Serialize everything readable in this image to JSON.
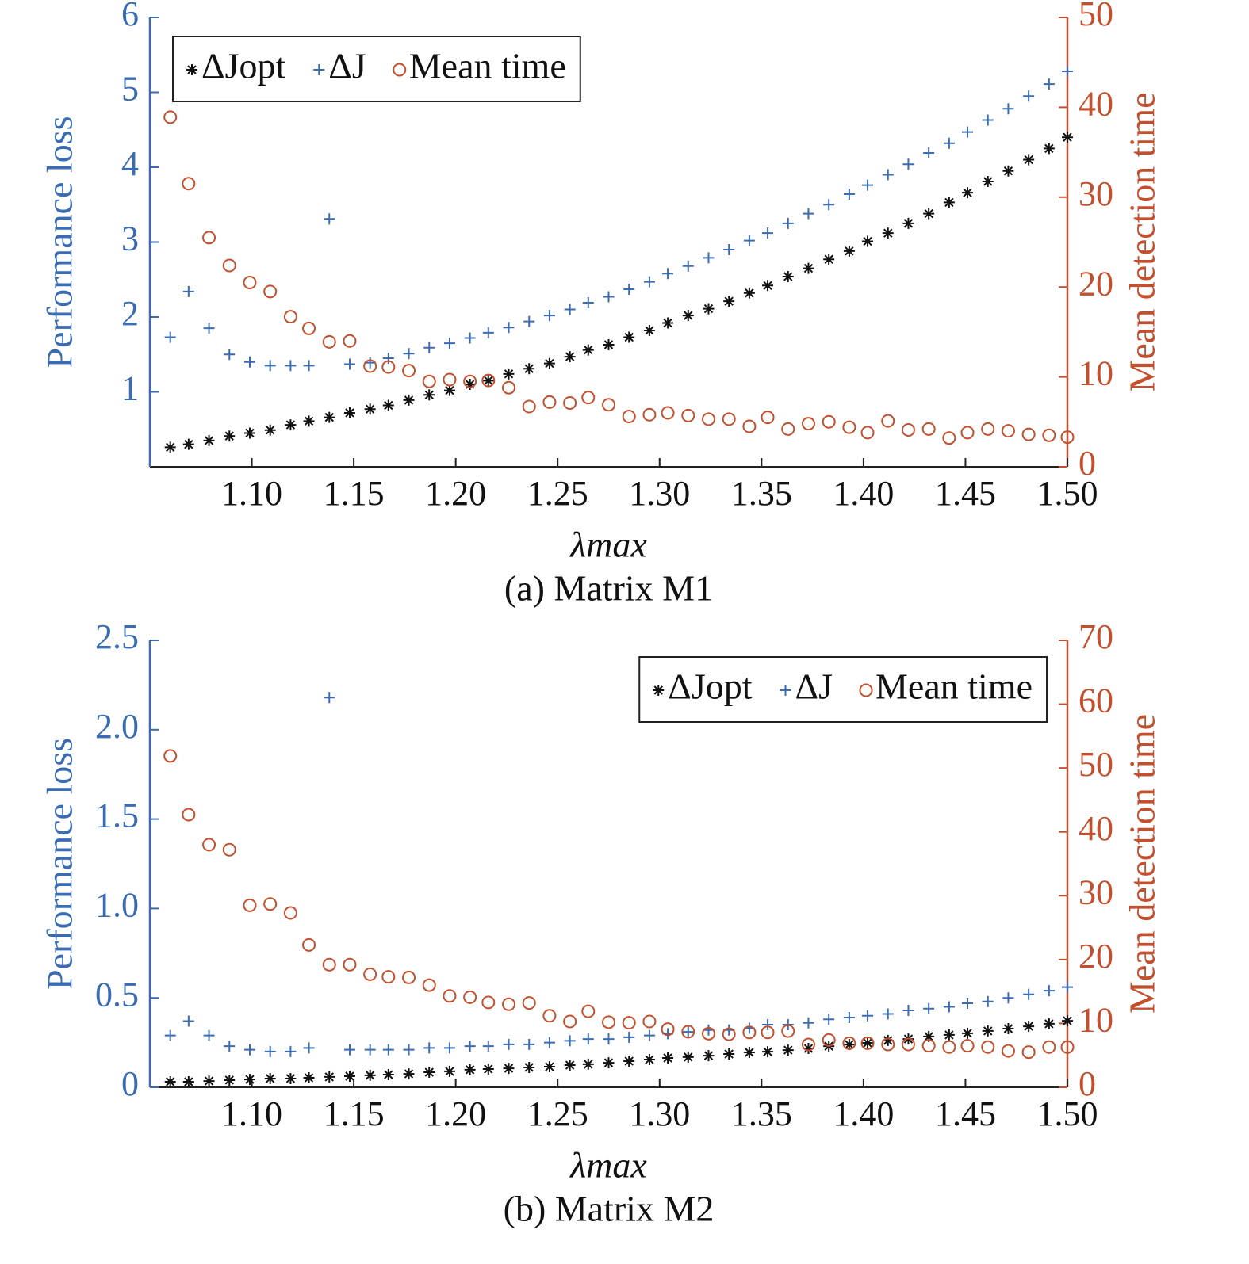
{
  "chart_data": [
    {
      "type": "scatter",
      "title": "(a) Matrix M1",
      "xlabel": "λmax",
      "ylabel": "Performance loss",
      "y2label": "Mean detection time",
      "legend": "upper left",
      "ycolor": "#3b6cb2",
      "y2color": "#c2502e",
      "xlim": [
        1.05,
        1.5
      ],
      "xticks": [
        {
          "value": 1.1,
          "label": "1.10"
        },
        1.15,
        {
          "value": 1.2,
          "label": "1.20"
        },
        1.25,
        {
          "value": 1.3,
          "label": "1.30"
        },
        1.35,
        {
          "value": 1.4,
          "label": "1.40"
        },
        1.45,
        {
          "value": 1.5,
          "label": "1.50"
        }
      ],
      "ylim": [
        0,
        6
      ],
      "yticks": [
        1,
        2,
        3,
        4,
        5,
        6
      ],
      "y2lim": [
        0,
        50
      ],
      "y2ticks": [
        0,
        10,
        20,
        30,
        40,
        50
      ],
      "x": [
        1.06,
        1.069,
        1.079,
        1.089,
        1.099,
        1.109,
        1.119,
        1.128,
        1.138,
        1.148,
        1.158,
        1.167,
        1.177,
        1.187,
        1.197,
        1.207,
        1.216,
        1.226,
        1.236,
        1.246,
        1.256,
        1.265,
        1.275,
        1.285,
        1.295,
        1.304,
        1.314,
        1.324,
        1.334,
        1.344,
        1.353,
        1.363,
        1.373,
        1.383,
        1.393,
        1.402,
        1.412,
        1.422,
        1.432,
        1.442,
        1.451,
        1.461,
        1.471,
        1.481,
        1.491,
        1.5
      ],
      "series": [
        {
          "name": "ΔJopt",
          "color": "#111111",
          "marker": "*",
          "values": [
            0.26,
            0.3,
            0.35,
            0.41,
            0.45,
            0.49,
            0.56,
            0.61,
            0.66,
            0.72,
            0.77,
            0.82,
            0.89,
            0.96,
            1.02,
            1.1,
            1.15,
            1.24,
            1.31,
            1.38,
            1.47,
            1.56,
            1.63,
            1.73,
            1.82,
            1.92,
            2.02,
            2.11,
            2.21,
            2.32,
            2.42,
            2.54,
            2.65,
            2.77,
            2.88,
            3.01,
            3.12,
            3.25,
            3.38,
            3.53,
            3.66,
            3.81,
            3.95,
            4.1,
            4.25,
            4.4
          ]
        },
        {
          "name": "ΔJ",
          "color": "#3b6cb2",
          "marker": "+",
          "values": [
            1.73,
            2.34,
            1.85,
            1.5,
            1.4,
            1.35,
            1.35,
            1.35,
            3.31,
            1.37,
            1.39,
            1.45,
            1.51,
            1.59,
            1.65,
            1.72,
            1.79,
            1.86,
            1.94,
            2.02,
            2.1,
            2.19,
            2.27,
            2.37,
            2.47,
            2.58,
            2.68,
            2.79,
            2.9,
            3.02,
            3.12,
            3.25,
            3.38,
            3.5,
            3.64,
            3.76,
            3.9,
            4.04,
            4.19,
            4.32,
            4.47,
            4.63,
            4.78,
            4.95,
            5.11,
            5.28
          ]
        },
        {
          "name": "Mean time",
          "color": "#c2502e",
          "marker": "o",
          "axis": "y2",
          "values": [
            38.9,
            31.5,
            25.5,
            22.4,
            20.5,
            19.5,
            16.7,
            15.4,
            13.9,
            14.0,
            11.2,
            11.1,
            10.7,
            9.5,
            9.7,
            9.5,
            9.6,
            8.8,
            6.7,
            7.2,
            7.1,
            7.7,
            6.9,
            5.6,
            5.8,
            6.0,
            5.7,
            5.3,
            5.3,
            4.5,
            5.5,
            4.2,
            4.8,
            5.0,
            4.4,
            3.8,
            5.1,
            4.1,
            4.2,
            3.2,
            3.8,
            4.2,
            4.0,
            3.6,
            3.5,
            3.3
          ]
        }
      ]
    },
    {
      "type": "scatter",
      "title": "(b) Matrix M2",
      "xlabel": "λmax",
      "ylabel": "Performance loss",
      "y2label": "Mean detection time",
      "legend": "upper right",
      "ycolor": "#3b6cb2",
      "y2color": "#c2502e",
      "xlim": [
        1.05,
        1.5
      ],
      "xticks": [
        {
          "value": 1.1,
          "label": "1.10"
        },
        1.15,
        {
          "value": 1.2,
          "label": "1.20"
        },
        1.25,
        {
          "value": 1.3,
          "label": "1.30"
        },
        1.35,
        {
          "value": 1.4,
          "label": "1.40"
        },
        1.45,
        {
          "value": 1.5,
          "label": "1.50"
        }
      ],
      "ylim": [
        0,
        2.5
      ],
      "yticks": [
        0,
        0.5,
        {
          "value": 1,
          "label": "1.0"
        },
        1.5,
        {
          "value": 2,
          "label": "2.0"
        },
        2.5
      ],
      "y2lim": [
        0,
        70
      ],
      "y2ticks": [
        0,
        10,
        20,
        30,
        40,
        50,
        60,
        70
      ],
      "x": [
        1.06,
        1.069,
        1.079,
        1.089,
        1.099,
        1.109,
        1.119,
        1.128,
        1.138,
        1.148,
        1.158,
        1.167,
        1.177,
        1.187,
        1.197,
        1.207,
        1.216,
        1.226,
        1.236,
        1.246,
        1.256,
        1.265,
        1.275,
        1.285,
        1.295,
        1.304,
        1.314,
        1.324,
        1.334,
        1.344,
        1.353,
        1.363,
        1.373,
        1.383,
        1.393,
        1.402,
        1.412,
        1.422,
        1.432,
        1.442,
        1.451,
        1.461,
        1.471,
        1.481,
        1.491,
        1.5
      ],
      "series": [
        {
          "name": "ΔJopt",
          "color": "#111111",
          "marker": "*",
          "values": [
            0.031,
            0.031,
            0.035,
            0.04,
            0.044,
            0.049,
            0.049,
            0.053,
            0.058,
            0.062,
            0.067,
            0.071,
            0.075,
            0.084,
            0.089,
            0.098,
            0.102,
            0.106,
            0.111,
            0.115,
            0.124,
            0.129,
            0.137,
            0.146,
            0.155,
            0.164,
            0.169,
            0.177,
            0.186,
            0.195,
            0.199,
            0.208,
            0.217,
            0.23,
            0.239,
            0.248,
            0.262,
            0.27,
            0.284,
            0.293,
            0.302,
            0.315,
            0.328,
            0.341,
            0.355,
            0.372
          ]
        },
        {
          "name": "ΔJ",
          "color": "#3b6cb2",
          "marker": "+",
          "values": [
            0.29,
            0.37,
            0.29,
            0.23,
            0.21,
            0.2,
            0.2,
            0.22,
            2.18,
            0.21,
            0.21,
            0.21,
            0.21,
            0.22,
            0.22,
            0.23,
            0.23,
            0.24,
            0.24,
            0.25,
            0.26,
            0.27,
            0.27,
            0.28,
            0.29,
            0.3,
            0.31,
            0.32,
            0.32,
            0.33,
            0.35,
            0.35,
            0.36,
            0.38,
            0.39,
            0.4,
            0.41,
            0.43,
            0.44,
            0.45,
            0.47,
            0.48,
            0.5,
            0.52,
            0.54,
            0.56
          ]
        },
        {
          "name": "Mean time",
          "color": "#c2502e",
          "marker": "o",
          "axis": "y2",
          "values": [
            51.9,
            42.7,
            38.0,
            37.2,
            28.5,
            28.7,
            27.3,
            22.3,
            19.2,
            19.2,
            17.7,
            17.3,
            17.2,
            16.0,
            14.3,
            14.1,
            13.3,
            13.0,
            13.2,
            11.2,
            10.3,
            11.9,
            10.2,
            10.1,
            10.3,
            9.1,
            8.7,
            8.4,
            8.3,
            8.6,
            8.6,
            8.8,
            6.7,
            7.4,
            6.9,
            6.9,
            6.7,
            6.7,
            6.5,
            6.3,
            6.5,
            6.3,
            5.7,
            5.5,
            6.3,
            6.3
          ]
        }
      ]
    }
  ]
}
